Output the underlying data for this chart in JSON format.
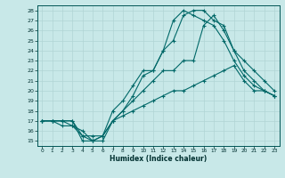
{
  "xlabel": "Humidex (Indice chaleur)",
  "background_color": "#c8e8e8",
  "grid_color": "#b0d4d4",
  "line_color": "#006868",
  "xlim": [
    -0.5,
    23.5
  ],
  "ylim": [
    14.5,
    28.5
  ],
  "yticks": [
    15,
    16,
    17,
    18,
    19,
    20,
    21,
    22,
    23,
    24,
    25,
    26,
    27,
    28
  ],
  "xticks": [
    0,
    1,
    2,
    3,
    4,
    5,
    6,
    7,
    8,
    9,
    10,
    11,
    12,
    13,
    14,
    15,
    16,
    17,
    18,
    19,
    20,
    21,
    22,
    23
  ],
  "line1_x": [
    0,
    1,
    2,
    3,
    4,
    5,
    6,
    7,
    8,
    9,
    10,
    11,
    12,
    13,
    14,
    15,
    16,
    17,
    18,
    19,
    20,
    21,
    22,
    23
  ],
  "line1_y": [
    17,
    17,
    17,
    17,
    15,
    15,
    15,
    17,
    17.5,
    18,
    18.5,
    19,
    19.5,
    20,
    20,
    20.5,
    21,
    21.5,
    22,
    22.5,
    21,
    20,
    20,
    19.5
  ],
  "line2_x": [
    0,
    1,
    2,
    3,
    4,
    5,
    6,
    7,
    8,
    9,
    10,
    11,
    12,
    13,
    14,
    15,
    16,
    17,
    18,
    19,
    20,
    21,
    22,
    23
  ],
  "line2_y": [
    17,
    17,
    16.5,
    16.5,
    15.5,
    15.5,
    15.5,
    17,
    18,
    19,
    20,
    21,
    22,
    22,
    23,
    23,
    26.5,
    27.5,
    26,
    24,
    22,
    21,
    20,
    19.5
  ],
  "line3_x": [
    0,
    1,
    2,
    3,
    4,
    5,
    6,
    7,
    8,
    9,
    10,
    11,
    12,
    13,
    14,
    15,
    16,
    17,
    18,
    19,
    20,
    21,
    22,
    23
  ],
  "line3_y": [
    17,
    17,
    17,
    16.5,
    16,
    15,
    15.5,
    17,
    18,
    19.5,
    21.5,
    22,
    24,
    25,
    27.5,
    28,
    28,
    27,
    26.5,
    24,
    23,
    22,
    21,
    20
  ],
  "line4_x": [
    0,
    1,
    2,
    3,
    4,
    5,
    6,
    7,
    8,
    9,
    10,
    11,
    12,
    13,
    14,
    15,
    16,
    17,
    18,
    19,
    20,
    21,
    22,
    23
  ],
  "line4_y": [
    17,
    17,
    17,
    17,
    15.5,
    15,
    15.5,
    18,
    19,
    20.5,
    22,
    22,
    24,
    27,
    28,
    27.5,
    27,
    26.5,
    25,
    23,
    21.5,
    20.5,
    20,
    19.5
  ]
}
